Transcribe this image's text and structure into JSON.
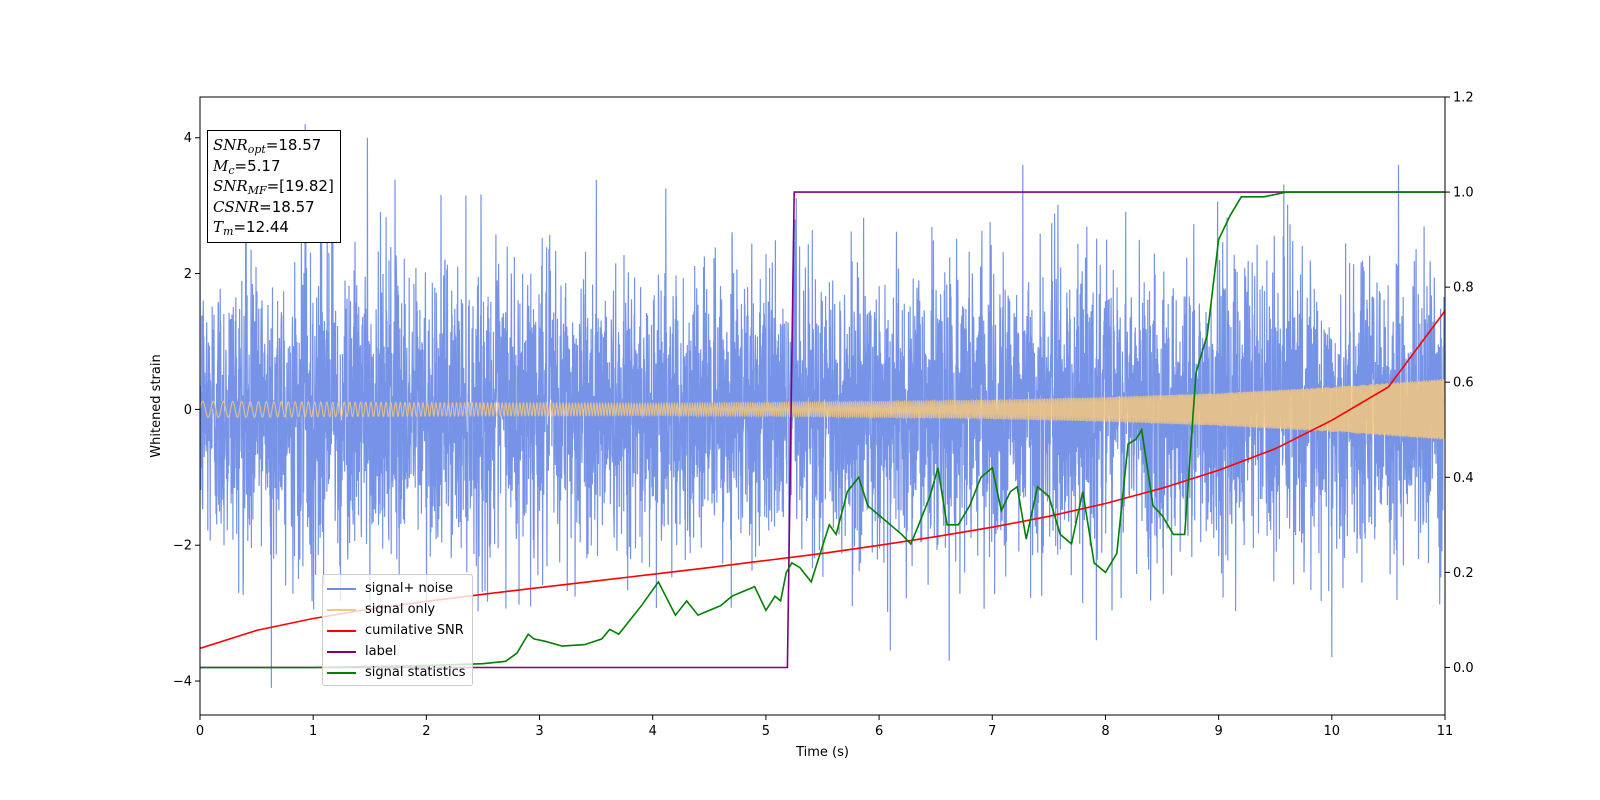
{
  "chart_data": {
    "type": "line",
    "title": "",
    "xlabel": "Time (s)",
    "ylabel": "Whitened strain",
    "y2label": "",
    "xlim": [
      0,
      11
    ],
    "ylim": [
      -4.5,
      4.6
    ],
    "y2lim": [
      -0.1,
      1.2
    ],
    "x_ticks": [
      "0",
      "1",
      "2",
      "3",
      "4",
      "5",
      "6",
      "7",
      "8",
      "9",
      "10",
      "11"
    ],
    "y_ticks": [
      "−4",
      "−2",
      "0",
      "2",
      "4"
    ],
    "y2_ticks": [
      "0.0",
      "0.2",
      "0.4",
      "0.6",
      "0.8",
      "1.0",
      "1.2"
    ],
    "grid": false,
    "legend_position": "lower-left",
    "series": [
      {
        "name": "signal+ noise",
        "axis": "left",
        "color": "#6f8de6",
        "description_values": "noise ~N(0,1) clipped around ±3, with outlier spikes up to 4.2 and -4.1",
        "spikes": [
          [
            0.63,
            -4.1
          ],
          [
            0.93,
            4.2
          ],
          [
            1.48,
            4.0
          ],
          [
            6.62,
            -3.7
          ],
          [
            7.27,
            3.6
          ],
          [
            10.59,
            3.6
          ],
          [
            10.0,
            -3.65
          ],
          [
            7.92,
            -3.4
          ],
          [
            6.1,
            -3.55
          ]
        ]
      },
      {
        "name": "signal only",
        "axis": "left",
        "color": "#f5c77e",
        "amplitude_envelope": [
          [
            0,
            0.12
          ],
          [
            2,
            0.1
          ],
          [
            4,
            0.09
          ],
          [
            5,
            0.1
          ],
          [
            6,
            0.12
          ],
          [
            7,
            0.14
          ],
          [
            8,
            0.18
          ],
          [
            9,
            0.24
          ],
          [
            10,
            0.33
          ],
          [
            11,
            0.45
          ]
        ]
      },
      {
        "name": "cumilative SNR",
        "axis": "right",
        "color": "#ff0000",
        "x": [
          0,
          0.5,
          1,
          1.5,
          2,
          2.5,
          3,
          3.5,
          4,
          4.5,
          5,
          5.5,
          6,
          6.5,
          7,
          7.5,
          8,
          8.5,
          9,
          9.5,
          10,
          10.5,
          11
        ],
        "values": [
          0.04,
          0.078,
          0.103,
          0.123,
          0.139,
          0.154,
          0.168,
          0.182,
          0.196,
          0.21,
          0.225,
          0.24,
          0.257,
          0.275,
          0.295,
          0.318,
          0.345,
          0.377,
          0.415,
          0.46,
          0.52,
          0.59,
          0.75
        ]
      },
      {
        "name": "label",
        "axis": "right",
        "color": "#800080",
        "x": [
          0,
          5.19,
          5.25,
          11
        ],
        "values": [
          0,
          0,
          1,
          1
        ]
      },
      {
        "name": "signal statistics",
        "axis": "right",
        "color": "#008000",
        "x": [
          0,
          0.5,
          1,
          1.5,
          2,
          2.5,
          2.7,
          2.8,
          2.9,
          2.95,
          3.05,
          3.2,
          3.4,
          3.55,
          3.62,
          3.7,
          3.8,
          3.9,
          4.05,
          4.2,
          4.3,
          4.4,
          4.5,
          4.6,
          4.7,
          4.8,
          4.9,
          5.0,
          5.08,
          5.13,
          5.18,
          5.23,
          5.3,
          5.4,
          5.48,
          5.56,
          5.62,
          5.72,
          5.82,
          5.9,
          6.0,
          6.1,
          6.2,
          6.28,
          6.35,
          6.45,
          6.52,
          6.6,
          6.7,
          6.8,
          6.9,
          7.0,
          7.08,
          7.16,
          7.22,
          7.3,
          7.4,
          7.5,
          7.6,
          7.7,
          7.8,
          7.9,
          8.0,
          8.1,
          8.2,
          8.27,
          8.32,
          8.42,
          8.5,
          8.6,
          8.7,
          8.8,
          8.9,
          9.0,
          9.1,
          9.2,
          9.4,
          9.6,
          9.8,
          10.0,
          10.5,
          11.0
        ],
        "values": [
          0.0,
          0.0,
          0.0,
          0.002,
          0.004,
          0.008,
          0.013,
          0.03,
          0.07,
          0.06,
          0.055,
          0.045,
          0.048,
          0.06,
          0.08,
          0.07,
          0.1,
          0.13,
          0.18,
          0.11,
          0.14,
          0.11,
          0.12,
          0.13,
          0.15,
          0.16,
          0.17,
          0.12,
          0.15,
          0.14,
          0.2,
          0.22,
          0.21,
          0.18,
          0.24,
          0.3,
          0.28,
          0.37,
          0.4,
          0.34,
          0.32,
          0.3,
          0.28,
          0.26,
          0.3,
          0.36,
          0.42,
          0.3,
          0.3,
          0.34,
          0.4,
          0.42,
          0.33,
          0.37,
          0.38,
          0.27,
          0.38,
          0.36,
          0.28,
          0.26,
          0.37,
          0.22,
          0.2,
          0.24,
          0.47,
          0.48,
          0.5,
          0.34,
          0.32,
          0.28,
          0.28,
          0.62,
          0.7,
          0.9,
          0.95,
          0.99,
          0.99,
          1.0,
          1.0,
          1.0,
          1.0,
          1.0
        ]
      }
    ]
  },
  "info_box": {
    "snr_opt_label": "SNR",
    "snr_opt_sub": "opt",
    "snr_opt_value": "=18.57",
    "mc_label": "M",
    "mc_sub": "c",
    "mc_value": "=5.17",
    "snr_mf_label": "SNR",
    "snr_mf_sub": "MF",
    "snr_mf_value": "=[19.82]",
    "csnr_label": "CSNR",
    "csnr_value": "=18.57",
    "tm_label": "T",
    "tm_sub": "m",
    "tm_value": "=12.44"
  },
  "legend": {
    "items": [
      {
        "label": "signal+ noise",
        "color": "#6f8de6"
      },
      {
        "label": "signal only",
        "color": "#f5c77e"
      },
      {
        "label": "cumilative SNR",
        "color": "#ff0000"
      },
      {
        "label": "label",
        "color": "#800080"
      },
      {
        "label": "signal statistics",
        "color": "#008000"
      }
    ]
  }
}
